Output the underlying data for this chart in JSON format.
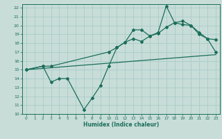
{
  "background_color": "#c8ddd8",
  "grid_color": "#a8ccc8",
  "line_color": "#1a6e5a",
  "xlabel": "Humidex (Indice chaleur)",
  "xlim": [
    -0.5,
    23.5
  ],
  "ylim": [
    10,
    22.4
  ],
  "yticks": [
    10,
    11,
    12,
    13,
    14,
    15,
    16,
    17,
    18,
    19,
    20,
    21,
    22
  ],
  "xticks": [
    0,
    1,
    2,
    3,
    4,
    5,
    6,
    7,
    8,
    9,
    10,
    11,
    12,
    13,
    14,
    15,
    16,
    17,
    18,
    19,
    20,
    21,
    22,
    23
  ],
  "line1_x": [
    0,
    23
  ],
  "line1_y": [
    15.0,
    16.7
  ],
  "line2_x": [
    0,
    2,
    3,
    4,
    5,
    7,
    8,
    9,
    10,
    11,
    12,
    13,
    14,
    15,
    16,
    17,
    18,
    19,
    20,
    21,
    22,
    23
  ],
  "line2_y": [
    15.0,
    15.4,
    13.6,
    14.0,
    14.0,
    10.5,
    11.8,
    13.2,
    15.4,
    17.5,
    18.1,
    19.5,
    19.5,
    18.8,
    19.2,
    22.2,
    20.3,
    20.5,
    20.0,
    19.0,
    18.5,
    17.0
  ],
  "line3_x": [
    0,
    2,
    3,
    10,
    11,
    12,
    13,
    14,
    15,
    16,
    17,
    18,
    19,
    20,
    21,
    22,
    23
  ],
  "line3_y": [
    15.0,
    15.4,
    15.4,
    17.0,
    17.5,
    18.1,
    18.5,
    18.2,
    18.8,
    19.1,
    19.8,
    20.3,
    20.1,
    20.0,
    19.2,
    18.5,
    18.4
  ]
}
